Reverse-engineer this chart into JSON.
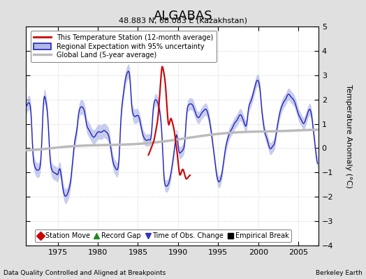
{
  "title": "ALGABAS",
  "subtitle": "48.883 N, 68.083 E (Kazakhstan)",
  "ylabel": "Temperature Anomaly (°C)",
  "xlabel_left": "Data Quality Controlled and Aligned at Breakpoints",
  "xlabel_right": "Berkeley Earth",
  "xlim": [
    1971.0,
    2007.5
  ],
  "ylim": [
    -4,
    5
  ],
  "yticks": [
    -4,
    -3,
    -2,
    -1,
    0,
    1,
    2,
    3,
    4,
    5
  ],
  "xticks": [
    1975,
    1980,
    1985,
    1990,
    1995,
    2000,
    2005
  ],
  "bg_color": "#e0e0e0",
  "plot_bg_color": "#ffffff",
  "legend_entries": [
    "This Temperature Station (12-month average)",
    "Regional Expectation with 95% uncertainty",
    "Global Land (5-year average)"
  ],
  "legend_colors": [
    "#cc0000",
    "#3333bb",
    "#aaaaaa"
  ],
  "marker_legend": [
    {
      "label": "Station Move",
      "color": "#cc0000",
      "marker": "D"
    },
    {
      "label": "Record Gap",
      "color": "#228822",
      "marker": "^"
    },
    {
      "label": "Time of Obs. Change",
      "color": "#3333bb",
      "marker": "v"
    },
    {
      "label": "Empirical Break",
      "color": "#000000",
      "marker": "s"
    }
  ]
}
